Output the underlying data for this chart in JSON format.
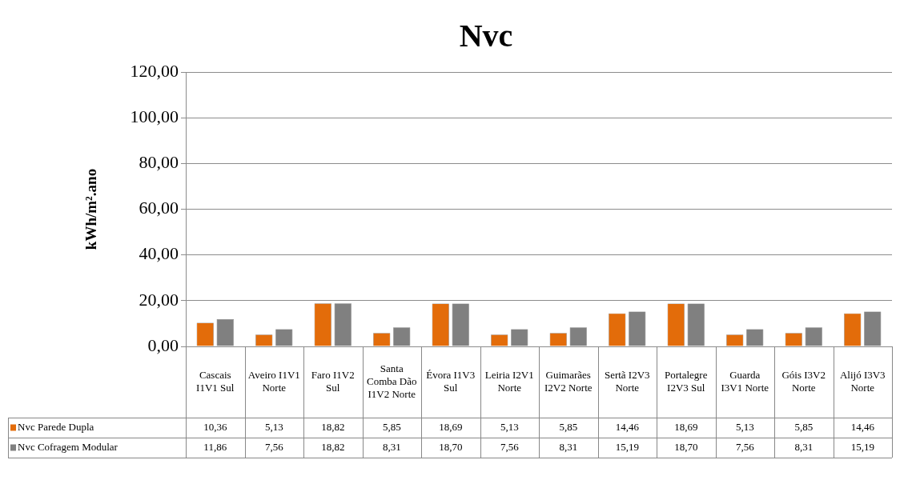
{
  "chart_data": {
    "type": "bar",
    "title": "Nvc",
    "ylabel": "kWh/m².ano",
    "categories": [
      "Cascais I1V1 Sul",
      "Aveiro I1V1 Norte",
      "Faro I1V2 Sul",
      "Santa Comba Dão I1V2 Norte",
      "Évora I1V3 Sul",
      "Leiria I2V1 Norte",
      "Guimarães I2V2 Norte",
      "Sertã I2V3 Norte",
      "Portalegre I2V3 Sul",
      "Guarda I3V1 Norte",
      "Góis I3V2 Norte",
      "Alijó I3V3 Norte"
    ],
    "series": [
      {
        "name": "Nvc Parede Dupla",
        "color": "#e36c0a",
        "values": [
          10.36,
          5.13,
          18.82,
          5.85,
          18.69,
          5.13,
          5.85,
          14.46,
          18.69,
          5.13,
          5.85,
          14.46
        ],
        "value_labels": [
          "10,36",
          "5,13",
          "18,82",
          "5,85",
          "18,69",
          "5,13",
          "5,85",
          "14,46",
          "18,69",
          "5,13",
          "5,85",
          "14,46"
        ]
      },
      {
        "name": "Nvc Cofragem Modular",
        "color": "#808080",
        "values": [
          11.86,
          7.56,
          18.82,
          8.31,
          18.7,
          7.56,
          8.31,
          15.19,
          18.7,
          7.56,
          8.31,
          15.19
        ],
        "value_labels": [
          "11,86",
          "7,56",
          "18,82",
          "8,31",
          "18,70",
          "7,56",
          "8,31",
          "15,19",
          "18,70",
          "7,56",
          "8,31",
          "15,19"
        ]
      }
    ],
    "ylim": [
      0,
      120
    ],
    "yticks": [
      {
        "value": 0,
        "label": "0,00"
      },
      {
        "value": 20,
        "label": "20,00"
      },
      {
        "value": 40,
        "label": "40,00"
      },
      {
        "value": 60,
        "label": "60,00"
      },
      {
        "value": 80,
        "label": "80,00"
      },
      {
        "value": 100,
        "label": "100,00"
      },
      {
        "value": 120,
        "label": "120,00"
      }
    ],
    "grid": "y",
    "legend": "bottom"
  }
}
